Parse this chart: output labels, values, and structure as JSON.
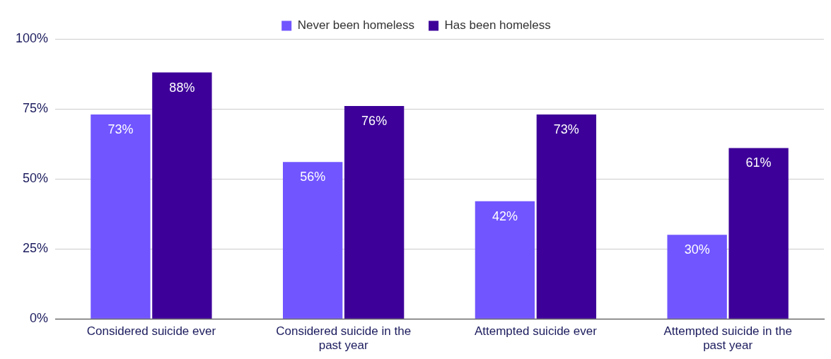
{
  "chart_data": {
    "type": "bar",
    "categories": [
      "Considered suicide ever",
      "Considered suicide in the past year",
      "Attempted suicide ever",
      "Attempted suicide in the past year"
    ],
    "series": [
      {
        "name": "Never been homeless",
        "color": "#7155ff",
        "values": [
          73,
          56,
          42,
          30
        ],
        "value_labels": [
          "73%",
          "56%",
          "42%",
          "30%"
        ]
      },
      {
        "name": "Has been homeless",
        "color": "#3d0099",
        "values": [
          88,
          76,
          73,
          61
        ],
        "value_labels": [
          "88%",
          "76%",
          "73%",
          "61%"
        ]
      }
    ],
    "ylim": [
      0,
      100
    ],
    "yticks": [
      {
        "value": 0,
        "label": "0%"
      },
      {
        "value": 25,
        "label": "25%"
      },
      {
        "value": 50,
        "label": "50%"
      },
      {
        "value": 75,
        "label": "75%"
      },
      {
        "value": 100,
        "label": "100%"
      }
    ],
    "grid": "y",
    "legend": "top"
  }
}
